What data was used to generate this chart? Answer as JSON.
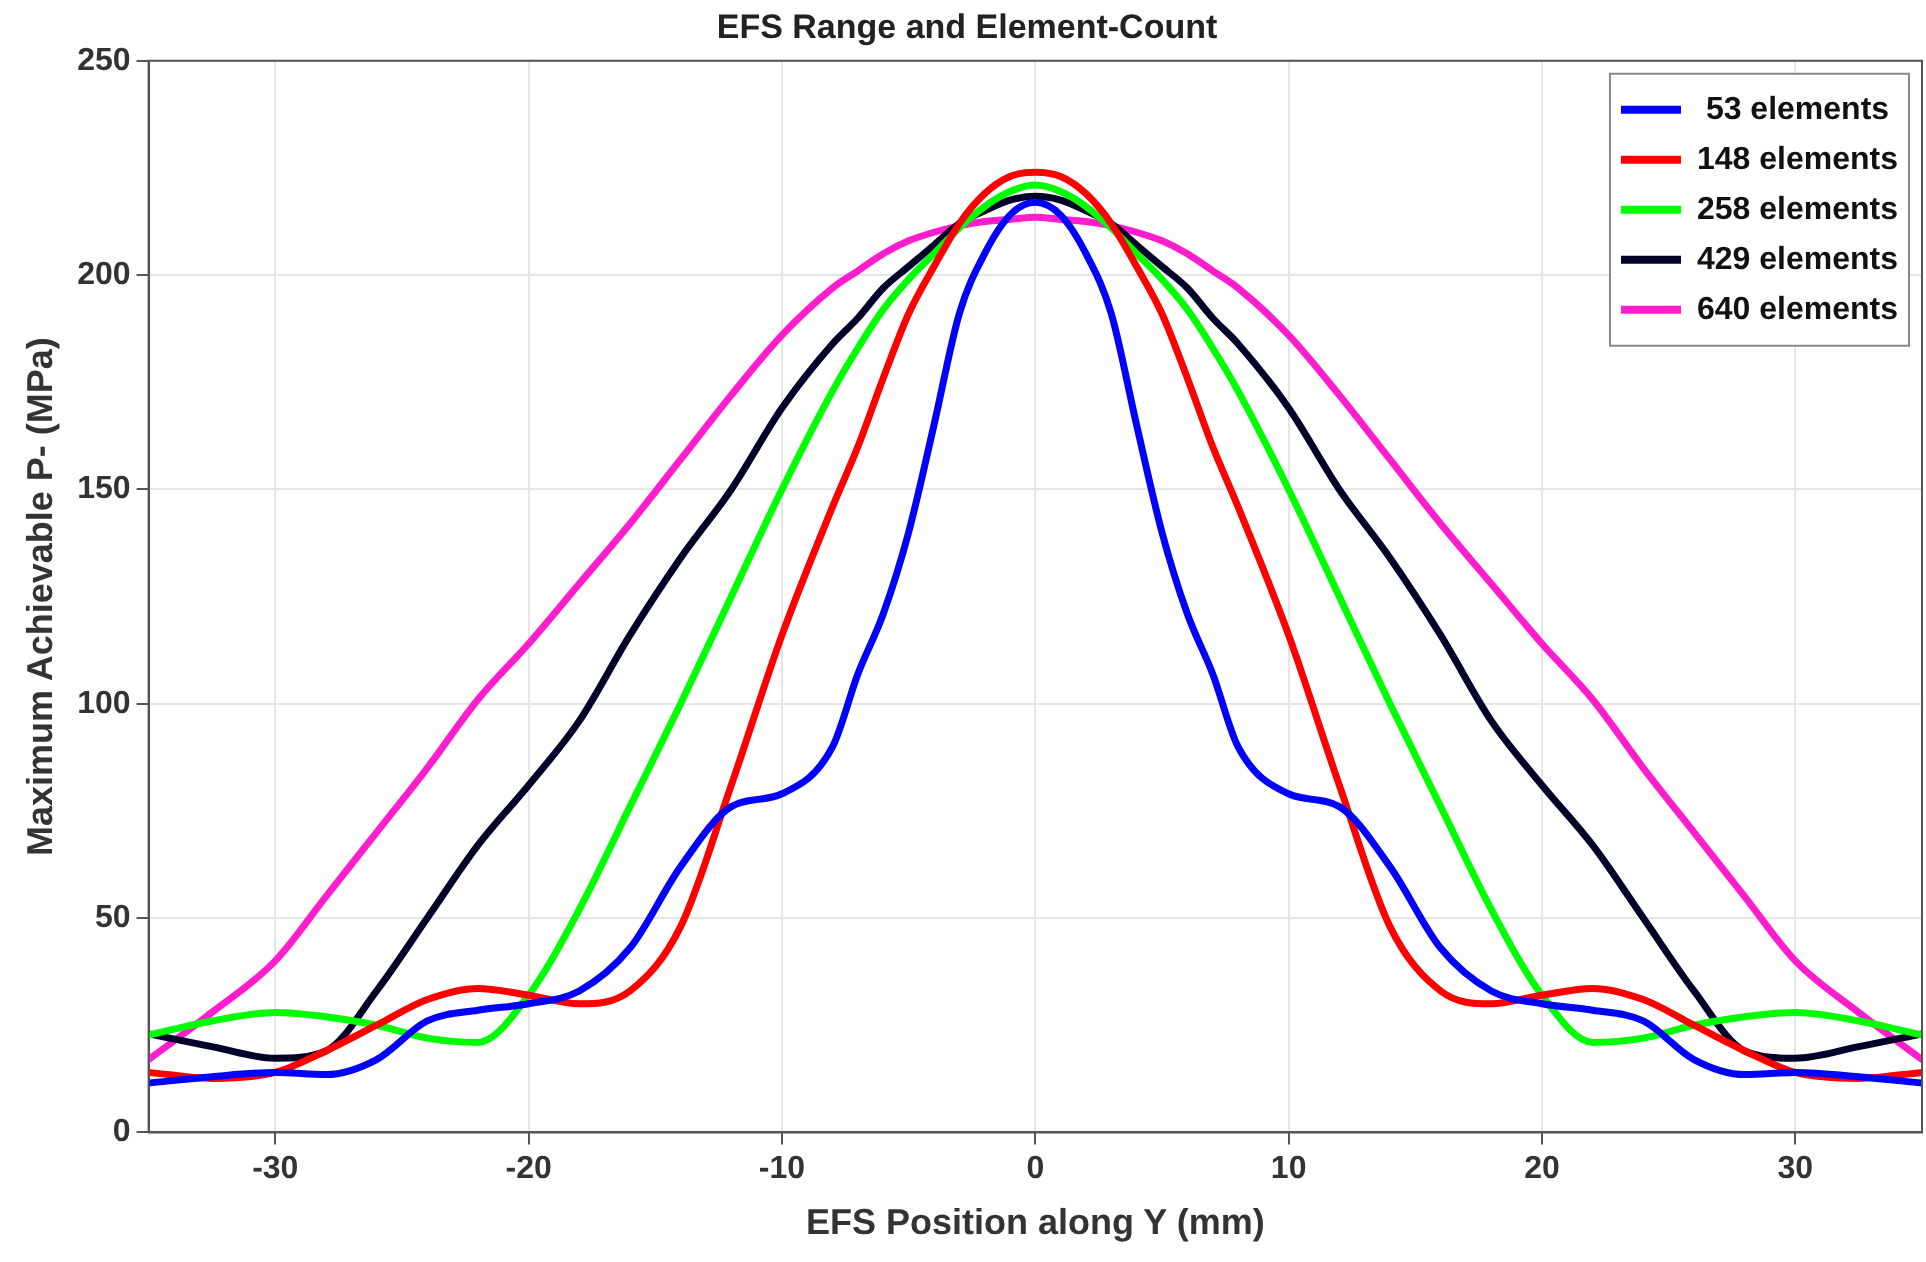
{
  "chart_data": {
    "type": "line",
    "title": "EFS Range and Element-Count",
    "xlabel": "EFS Position along Y (mm)",
    "ylabel": "Maximum Achievable P- (MPa)",
    "x": [
      -35,
      -32.5,
      -30,
      -28,
      -26,
      -24,
      -22,
      -20,
      -18,
      -16,
      -14,
      -12,
      -10,
      -8,
      -7,
      -6,
      -5,
      -4,
      -3,
      -2,
      -1,
      0,
      1,
      2,
      3,
      4,
      5,
      6,
      7,
      8,
      10,
      12,
      14,
      16,
      18,
      20,
      22,
      24,
      26,
      28,
      30,
      32.5,
      35
    ],
    "series": [
      {
        "name": " 53 elements",
        "color": "#0000ff",
        "values": [
          11.5,
          13,
          14,
          13.5,
          17,
          26,
          28.5,
          30,
          33,
          43,
          62,
          76,
          79,
          90,
          107,
          121,
          140,
          165,
          191,
          205,
          214,
          217,
          214,
          205,
          191,
          165,
          140,
          121,
          107,
          90,
          79,
          76,
          62,
          43,
          33,
          30,
          28.5,
          26,
          17,
          13.5,
          14,
          13,
          11.5
        ]
      },
      {
        "name": "148 elements",
        "color": "#ff0000",
        "values": [
          14,
          12.6,
          14,
          19,
          25,
          31,
          33.6,
          32,
          30,
          33,
          48,
          81,
          116,
          146,
          160,
          176,
          191,
          202,
          212,
          219,
          223,
          224,
          223,
          219,
          212,
          202,
          191,
          176,
          160,
          146,
          116,
          81,
          48,
          33,
          30,
          32,
          33.6,
          31,
          25,
          19,
          14,
          12.6,
          14
        ]
      },
      {
        "name": "258 elements",
        "color": "#00ff00",
        "values": [
          22.7,
          26,
          28,
          27,
          25,
          22,
          21,
          32,
          52,
          76,
          100,
          125,
          150,
          173,
          183,
          192,
          199,
          205,
          211,
          216,
          219.5,
          221,
          219.5,
          216,
          211,
          205,
          199,
          192,
          183,
          173,
          150,
          125,
          100,
          76,
          52,
          32,
          21,
          22,
          25,
          27,
          28,
          26,
          22.7
        ]
      },
      {
        "name": "429 elements",
        "color": "#000028",
        "values": [
          23,
          20,
          17.3,
          19,
          33,
          50,
          67,
          81,
          96,
          116,
          134,
          150,
          169,
          184,
          190,
          197,
          202,
          207,
          212,
          215,
          217.5,
          218.4,
          217.5,
          215,
          212,
          207,
          202,
          197,
          190,
          184,
          169,
          150,
          134,
          116,
          96,
          81,
          67,
          50,
          33,
          19,
          17.3,
          20,
          23
        ]
      },
      {
        "name": "640 elements",
        "color": "#ff1dce",
        "values": [
          17,
          28,
          40,
          55,
          70,
          85,
          101,
          114,
          128,
          142,
          157,
          172,
          186,
          197,
          201,
          205,
          208,
          210,
          211.5,
          212.5,
          213,
          213.5,
          213,
          212.5,
          211.5,
          210,
          208,
          205,
          201,
          197,
          186,
          172,
          157,
          142,
          128,
          114,
          101,
          85,
          70,
          55,
          40,
          28,
          17
        ]
      }
    ],
    "xlim": [
      -35,
      35
    ],
    "xticks": [
      -30,
      -20,
      -10,
      0,
      10,
      20,
      30
    ],
    "ylim": [
      0,
      250
    ],
    "yticks": [
      0,
      50,
      100,
      150,
      200,
      250
    ],
    "grid": true,
    "legend": "top right",
    "marker": "none",
    "line_style": "solid"
  }
}
